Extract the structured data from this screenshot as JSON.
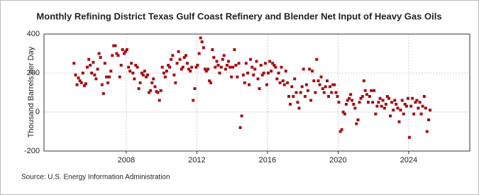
{
  "chart_data": {
    "type": "scatter",
    "title": "Monthly Refining District Texas Gulf Coast Refinery and Blender Net Input of Heavy Gas Oils",
    "y_label": "Thousand Barrels per Day",
    "source": "Source: U.S. Energy Information Administration",
    "color": "#a50f15",
    "grid": true,
    "xlim": [
      2003.34,
      2027.46
    ],
    "xticks": [
      2008,
      2012,
      2016,
      2020,
      2024
    ],
    "ylim": [
      -200,
      400
    ],
    "yticks": [
      -200,
      0,
      200,
      400
    ],
    "x": [
      2005.04,
      2005.13,
      2005.21,
      2005.29,
      2005.38,
      2005.46,
      2005.54,
      2005.63,
      2005.71,
      2005.79,
      2005.88,
      2005.96,
      2006.04,
      2006.13,
      2006.21,
      2006.29,
      2006.38,
      2006.46,
      2006.54,
      2006.63,
      2006.71,
      2006.79,
      2006.88,
      2006.96,
      2007.04,
      2007.13,
      2007.21,
      2007.29,
      2007.38,
      2007.46,
      2007.54,
      2007.63,
      2007.71,
      2007.79,
      2007.88,
      2007.96,
      2008.04,
      2008.13,
      2008.21,
      2008.29,
      2008.38,
      2008.46,
      2008.54,
      2008.63,
      2008.71,
      2008.79,
      2008.88,
      2008.96,
      2009.04,
      2009.13,
      2009.21,
      2009.29,
      2009.38,
      2009.46,
      2009.54,
      2009.63,
      2009.71,
      2009.79,
      2009.88,
      2009.96,
      2010.04,
      2010.13,
      2010.21,
      2010.29,
      2010.38,
      2010.46,
      2010.54,
      2010.63,
      2010.71,
      2010.79,
      2010.88,
      2010.96,
      2011.04,
      2011.13,
      2011.21,
      2011.29,
      2011.38,
      2011.46,
      2011.54,
      2011.63,
      2011.71,
      2011.79,
      2011.88,
      2011.96,
      2012.04,
      2012.13,
      2012.21,
      2012.29,
      2012.38,
      2012.46,
      2012.54,
      2012.63,
      2012.71,
      2012.79,
      2012.88,
      2012.96,
      2013.04,
      2013.13,
      2013.21,
      2013.29,
      2013.38,
      2013.46,
      2013.54,
      2013.63,
      2013.71,
      2013.79,
      2013.88,
      2013.96,
      2014.04,
      2014.13,
      2014.21,
      2014.29,
      2014.38,
      2014.46,
      2014.54,
      2014.63,
      2014.71,
      2014.79,
      2014.88,
      2014.96,
      2015.04,
      2015.13,
      2015.21,
      2015.29,
      2015.38,
      2015.46,
      2015.54,
      2015.63,
      2015.71,
      2015.79,
      2015.88,
      2015.96,
      2016.04,
      2016.13,
      2016.21,
      2016.29,
      2016.38,
      2016.46,
      2016.54,
      2016.63,
      2016.71,
      2016.79,
      2016.88,
      2016.96,
      2017.04,
      2017.13,
      2017.21,
      2017.29,
      2017.38,
      2017.46,
      2017.54,
      2017.63,
      2017.71,
      2017.79,
      2017.88,
      2017.96,
      2018.04,
      2018.13,
      2018.21,
      2018.29,
      2018.38,
      2018.46,
      2018.54,
      2018.63,
      2018.71,
      2018.79,
      2018.88,
      2018.96,
      2019.04,
      2019.13,
      2019.21,
      2019.29,
      2019.38,
      2019.46,
      2019.54,
      2019.63,
      2019.71,
      2019.79,
      2019.88,
      2019.96,
      2020.04,
      2020.13,
      2020.21,
      2020.29,
      2020.38,
      2020.46,
      2020.54,
      2020.63,
      2020.71,
      2020.79,
      2020.88,
      2020.96,
      2021.04,
      2021.13,
      2021.21,
      2021.29,
      2021.38,
      2021.46,
      2021.54,
      2021.63,
      2021.71,
      2021.79,
      2021.88,
      2021.96,
      2022.04,
      2022.13,
      2022.21,
      2022.29,
      2022.38,
      2022.46,
      2022.54,
      2022.63,
      2022.71,
      2022.79,
      2022.88,
      2022.96,
      2023.04,
      2023.13,
      2023.21,
      2023.29,
      2023.38,
      2023.46,
      2023.54,
      2023.63,
      2023.71,
      2023.79,
      2023.88,
      2023.96,
      2024.04,
      2024.13,
      2024.21,
      2024.29,
      2024.38,
      2024.46,
      2024.54,
      2024.63,
      2024.71,
      2024.79,
      2024.88,
      2024.96,
      2025.04,
      2025.13,
      2025.21
    ],
    "values": [
      250,
      190,
      140,
      175,
      160,
      150,
      200,
      135,
      145,
      230,
      270,
      240,
      200,
      255,
      190,
      170,
      220,
      300,
      280,
      140,
      95,
      250,
      180,
      150,
      180,
      210,
      290,
      340,
      340,
      300,
      290,
      180,
      240,
      320,
      300,
      310,
      320,
      230,
      210,
      250,
      200,
      170,
      240,
      230,
      120,
      150,
      200,
      190,
      210,
      180,
      190,
      100,
      110,
      150,
      170,
      130,
      105,
      100,
      60,
      110,
      230,
      200,
      180,
      210,
      240,
      230,
      270,
      290,
      190,
      150,
      250,
      310,
      270,
      220,
      230,
      280,
      290,
      250,
      220,
      210,
      230,
      60,
      120,
      230,
      240,
      300,
      380,
      360,
      330,
      220,
      210,
      220,
      160,
      150,
      320,
      280,
      230,
      260,
      240,
      200,
      230,
      270,
      290,
      220,
      240,
      260,
      230,
      180,
      230,
      320,
      240,
      180,
      250,
      -80,
      -20,
      190,
      150,
      250,
      200,
      140,
      270,
      230,
      190,
      220,
      260,
      170,
      120,
      240,
      190,
      200,
      250,
      140,
      200,
      260,
      210,
      250,
      240,
      230,
      170,
      200,
      150,
      230,
      160,
      140,
      210,
      150,
      80,
      40,
      130,
      80,
      170,
      100,
      50,
      20,
      100,
      130,
      220,
      80,
      140,
      110,
      220,
      60,
      210,
      160,
      100,
      270,
      160,
      140,
      180,
      120,
      100,
      130,
      160,
      80,
      130,
      100,
      140,
      140,
      100,
      80,
      50,
      -100,
      -90,
      0,
      -10,
      40,
      60,
      70,
      90,
      60,
      40,
      20,
      -60,
      -40,
      50,
      70,
      80,
      160,
      110,
      90,
      50,
      80,
      110,
      50,
      110,
      -10,
      30,
      50,
      70,
      30,
      60,
      20,
      40,
      80,
      70,
      -20,
      50,
      10,
      60,
      40,
      20,
      -50,
      10,
      60,
      -10,
      40,
      30,
      70,
      -130,
      30,
      70,
      -10,
      50,
      60,
      20,
      50,
      -10,
      30,
      80,
      20,
      -100,
      -40,
      10
    ]
  }
}
